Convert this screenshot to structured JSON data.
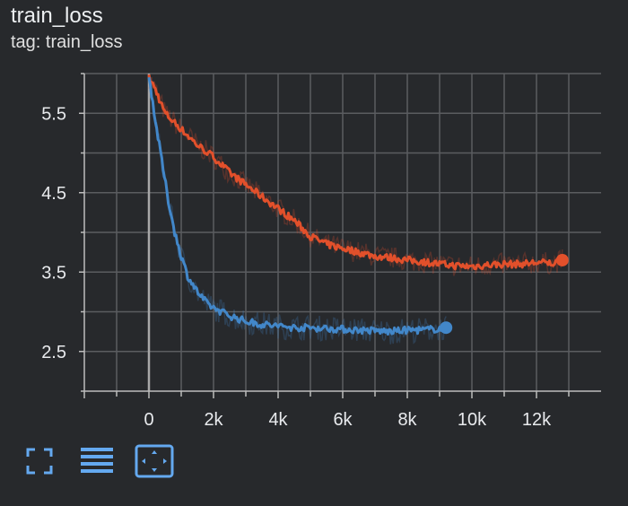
{
  "header": {
    "title": "train_loss",
    "subtitle": "tag: train_loss"
  },
  "toolbar": {
    "buttons": [
      {
        "name": "fullscreen-toggle",
        "icon": "fullscreen-icon"
      },
      {
        "name": "toggle-y-log",
        "icon": "lines-icon"
      },
      {
        "name": "fit-domain",
        "icon": "fit-domain-icon"
      }
    ]
  },
  "colors": {
    "series_blue": "#4287c9",
    "series_orange": "#e2502b",
    "grid": "#5b5d60",
    "axis": "#bdbdbd",
    "zero_line": "#a8a8a8",
    "toolbar_icon": "#64a9f0"
  },
  "chart_data": {
    "type": "line",
    "title": "train_loss",
    "xlabel": "",
    "ylabel": "",
    "xlim": [
      -2000,
      14000
    ],
    "ylim": [
      2.0,
      6.0
    ],
    "x_ticks": [
      0,
      2000,
      4000,
      6000,
      8000,
      10000,
      12000
    ],
    "x_tick_labels": [
      "0",
      "2k",
      "4k",
      "6k",
      "8k",
      "10k",
      "12k"
    ],
    "y_ticks": [
      2.5,
      3.5,
      4.5,
      5.5
    ],
    "y_tick_labels": [
      "2.5",
      "3.5",
      "4.5",
      "5.5"
    ],
    "grid": true,
    "series": [
      {
        "color": "#e2502b",
        "x": [
          0,
          200,
          500,
          1000,
          1500,
          2000,
          2500,
          3000,
          3500,
          4000,
          4500,
          5000,
          5500,
          6000,
          6500,
          7000,
          7500,
          8000,
          8500,
          9000,
          9500,
          10000,
          10500,
          11000,
          11500,
          12000,
          12500,
          12800
        ],
        "y": [
          5.95,
          5.8,
          5.5,
          5.3,
          5.1,
          4.95,
          4.75,
          4.6,
          4.45,
          4.3,
          4.15,
          3.95,
          3.85,
          3.8,
          3.75,
          3.7,
          3.68,
          3.65,
          3.63,
          3.6,
          3.58,
          3.57,
          3.59,
          3.6,
          3.6,
          3.62,
          3.61,
          3.65
        ]
      },
      {
        "color": "#4287c9",
        "x": [
          0,
          100,
          200,
          400,
          600,
          800,
          1000,
          1200,
          1500,
          1800,
          2000,
          2500,
          3000,
          3500,
          4000,
          4500,
          5000,
          5500,
          6000,
          6500,
          7000,
          7500,
          8000,
          8500,
          9000,
          9200
        ],
        "y": [
          5.95,
          5.7,
          5.4,
          4.9,
          4.4,
          4.0,
          3.7,
          3.45,
          3.25,
          3.1,
          3.05,
          2.95,
          2.88,
          2.84,
          2.82,
          2.8,
          2.8,
          2.79,
          2.78,
          2.77,
          2.76,
          2.75,
          2.77,
          2.77,
          2.79,
          2.8
        ]
      }
    ]
  }
}
